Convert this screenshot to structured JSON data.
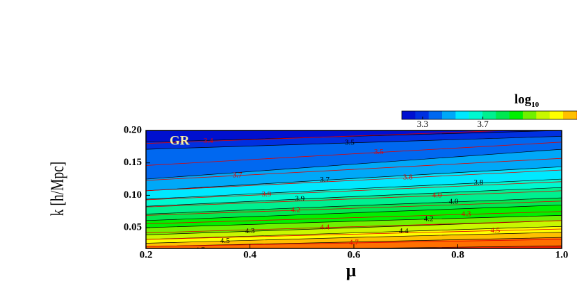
{
  "chart_data": {
    "type": "contour",
    "x_label": "μ",
    "y_label": "k [h/Mpc]",
    "annotation": "GR",
    "xlim": [
      0.2,
      1.0
    ],
    "ylim": [
      0.018,
      0.2
    ],
    "xticks": [
      0.2,
      0.4,
      0.6,
      0.8,
      {
        "value": 1.0,
        "label": "1.0"
      }
    ],
    "yticks": [
      0.05,
      {
        "value": 0.1,
        "label": "0.10"
      },
      0.15,
      {
        "value": 0.2,
        "label": "0.20"
      }
    ],
    "contour_x": [
      0.2,
      0.6,
      1.0
    ],
    "contours": [
      {
        "y": [
          0.182,
          0.191,
          0.2
        ]
      },
      {
        "y": [
          0.171,
          0.181,
          0.191
        ],
        "label": "3.5"
      },
      {
        "y": [
          0.125,
          0.148,
          0.171
        ]
      },
      {
        "y": [
          0.107,
          0.126,
          0.144
        ],
        "label": "3.7"
      },
      {
        "y": [
          0.094,
          0.11,
          0.125
        ],
        "label": "3.8"
      },
      {
        "y": [
          0.083,
          0.098,
          0.112
        ],
        "label": "3.9"
      },
      {
        "y": [
          0.071,
          0.084,
          0.096
        ],
        "label": "4.0"
      },
      {
        "y": [
          0.061,
          0.073,
          0.085
        ]
      },
      {
        "y": [
          0.05,
          0.06,
          0.069
        ],
        "label": "4.2"
      },
      {
        "y": [
          0.039,
          0.05,
          0.061
        ],
        "label": "4.3"
      },
      {
        "y": [
          0.032,
          0.042,
          0.052
        ],
        "label": "4.4"
      },
      {
        "y": [
          0.026,
          0.035,
          0.043
        ],
        "label": "4.5"
      },
      {
        "y": [
          0.021,
          0.028,
          0.035
        ]
      },
      {
        "y": [
          0.014,
          0.018,
          0.022
        ],
        "label": "4.7"
      }
    ],
    "band_colors": [
      "#0010d0",
      "#0030e0",
      "#0068f0",
      "#00a8f8",
      "#00e8ff",
      "#00f8d0",
      "#00f090",
      "#00e850",
      "#00f000",
      "#70f000",
      "#c8f800",
      "#ffff00",
      "#ffc000",
      "#ff7000",
      "#ff2000"
    ],
    "contour_color": "#000000",
    "ref_color": "#e00000",
    "ref_contours": [
      {
        "y": [
          0.18,
          0.203
        ],
        "label": "3.4"
      },
      {
        "y": [
          0.146,
          0.182
        ],
        "label": "3.5"
      },
      {
        "y": [
          0.123,
          0.157
        ],
        "label": "3.7"
      },
      {
        "y": [
          0.107,
          0.139
        ],
        "label": "3.8"
      },
      {
        "y": [
          0.093,
          0.121
        ],
        "label": "3.9"
      },
      {
        "y": [
          0.082,
          0.107
        ],
        "label": "4.0"
      },
      {
        "y": [
          0.069,
          0.091
        ],
        "label": "4.2"
      },
      {
        "y": [
          0.056,
          0.075
        ],
        "label": "4.3"
      },
      {
        "y": [
          0.042,
          0.061
        ],
        "label": "4.4"
      },
      {
        "y": [
          0.032,
          0.048
        ],
        "label": "4.5"
      },
      {
        "y": [
          0.021,
          0.032
        ],
        "label": "4.7"
      }
    ],
    "ref_x": [
      0.2,
      1.0
    ],
    "colorbar_title": {
      "main": "log",
      "sub": "10"
    },
    "colorbar_lim": [
      3.162,
      4.5
    ],
    "colorbar_ticks": [
      3.3,
      3.7
    ]
  }
}
